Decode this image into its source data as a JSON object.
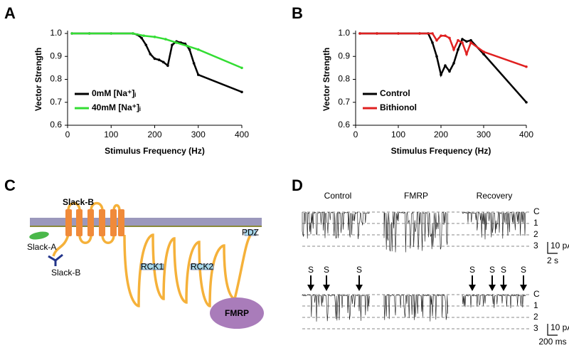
{
  "panels": [
    "A",
    "B",
    "C",
    "D"
  ],
  "chart_data": [
    {
      "type": "line",
      "xlabel": "Stimulus Frequency (Hz)",
      "ylabel": "Vector Strength",
      "xlim": [
        0,
        400
      ],
      "xticks": [
        0,
        100,
        200,
        300,
        400
      ],
      "ylim": [
        0.6,
        1.0
      ],
      "yticks": [
        0.6,
        0.7,
        0.8,
        0.9,
        {
          "value": 1,
          "label": "1.0"
        }
      ],
      "legend": "lower left",
      "series": [
        {
          "name": "0mM [Na⁺]ᵢ",
          "color": "#000000",
          "x": [
            10,
            50,
            100,
            150,
            160,
            170,
            180,
            190,
            200,
            210,
            220,
            230,
            240,
            250,
            260,
            270,
            280,
            290,
            300,
            400
          ],
          "values": [
            1.0,
            1.0,
            1.0,
            1.0,
            0.995,
            0.98,
            0.95,
            0.91,
            0.89,
            0.885,
            0.875,
            0.86,
            0.95,
            0.965,
            0.96,
            0.955,
            0.93,
            0.87,
            0.82,
            0.745
          ]
        },
        {
          "name": "40mM [Na⁺]ᵢ",
          "color": "#33dd33",
          "x": [
            10,
            50,
            100,
            150,
            175,
            200,
            225,
            250,
            275,
            300,
            400
          ],
          "values": [
            1.0,
            1.0,
            1.0,
            1.0,
            0.99,
            0.985,
            0.975,
            0.96,
            0.945,
            0.93,
            0.85
          ]
        }
      ]
    },
    {
      "type": "line",
      "xlabel": "Stimulus Frequency (Hz)",
      "ylabel": "Vector Strength",
      "xlim": [
        0,
        400
      ],
      "xticks": [
        0,
        100,
        200,
        300,
        400
      ],
      "ylim": [
        0.6,
        1.0
      ],
      "yticks": [
        0.6,
        0.7,
        0.8,
        0.9,
        {
          "value": 1,
          "label": "1.0"
        }
      ],
      "legend": "lower left",
      "series": [
        {
          "name": "Control",
          "color": "#000000",
          "x": [
            10,
            50,
            100,
            150,
            170,
            180,
            190,
            200,
            210,
            220,
            230,
            240,
            250,
            260,
            270,
            300,
            400
          ],
          "values": [
            1.0,
            1.0,
            1.0,
            1.0,
            1.0,
            0.96,
            0.9,
            0.82,
            0.86,
            0.835,
            0.87,
            0.93,
            0.975,
            0.965,
            0.97,
            0.91,
            0.7
          ]
        },
        {
          "name": "Bithionol",
          "color": "#e02020",
          "x": [
            10,
            50,
            100,
            150,
            180,
            190,
            200,
            210,
            220,
            230,
            240,
            250,
            260,
            270,
            300,
            400
          ],
          "values": [
            1.0,
            1.0,
            1.0,
            1.0,
            1.0,
            0.97,
            0.99,
            0.99,
            0.98,
            0.93,
            0.97,
            0.96,
            0.91,
            0.96,
            0.92,
            0.855
          ]
        }
      ]
    }
  ],
  "diagram": {
    "channel": "Slack-B",
    "isoform_a": "Slack-A",
    "isoform_b": "Slack-B",
    "domains": [
      "RCK1",
      "RCK2",
      "PDZ"
    ],
    "partner": "FMRP"
  },
  "recordings": {
    "conditions": [
      "Control",
      "FMRP",
      "Recovery"
    ],
    "levels": [
      "C",
      "1",
      "2",
      "3"
    ],
    "stimulus": "S",
    "scale_top": {
      "current": "10 pA",
      "time": "2 s"
    },
    "scale_bottom": {
      "current": "10 pA",
      "time": "200 ms"
    }
  }
}
